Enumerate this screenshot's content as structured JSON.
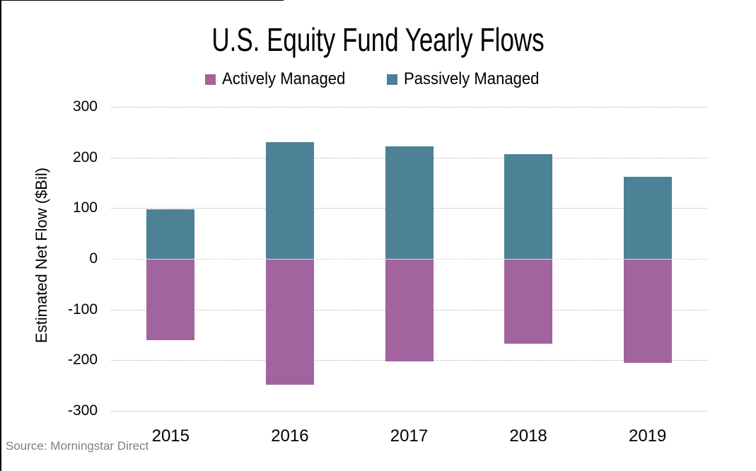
{
  "source": "Source: Morningstar Direct",
  "chart_data": {
    "type": "bar",
    "stacked": true,
    "title": "U.S. Equity Fund Yearly Flows",
    "ylabel": "Estimated Net Flow ($Bil)",
    "xlabel": "",
    "categories": [
      "2015",
      "2016",
      "2017",
      "2018",
      "2019"
    ],
    "series": [
      {
        "name": "Actively Managed",
        "color": "#A2639F",
        "values": [
          -160,
          -248,
          -203,
          -168,
          -205
        ]
      },
      {
        "name": "Passively Managed",
        "color": "#4D8196",
        "values": [
          97,
          230,
          222,
          207,
          162
        ]
      }
    ],
    "ylim": [
      -300,
      300
    ],
    "yticks": [
      300,
      200,
      100,
      0,
      -100,
      -200,
      -300
    ],
    "grid": true,
    "legend_position": "top"
  }
}
